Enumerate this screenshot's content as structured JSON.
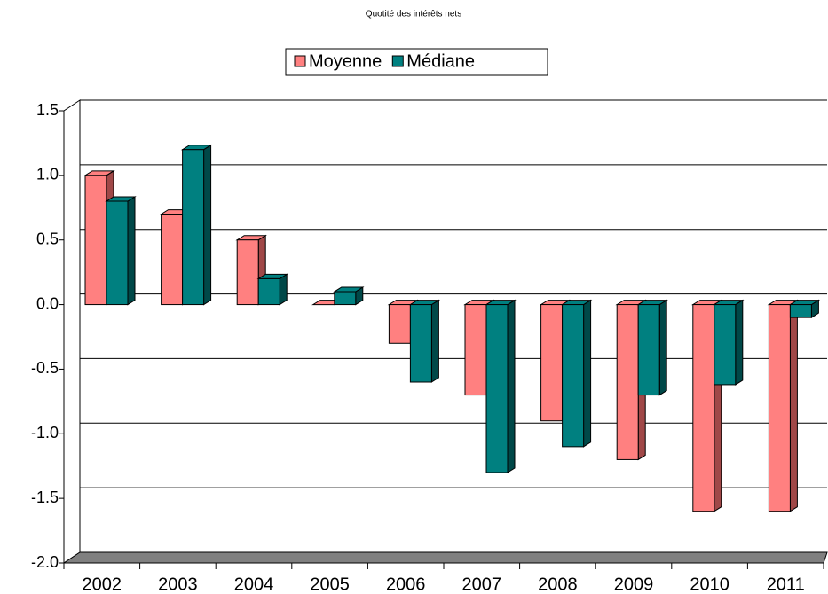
{
  "chart_data": {
    "type": "bar3d",
    "title": "Quotité des intérêts nets",
    "categories": [
      "2002",
      "2003",
      "2004",
      "2005",
      "2006",
      "2007",
      "2008",
      "2009",
      "2010",
      "2011"
    ],
    "series": [
      {
        "name": "Moyenne",
        "color": "#ff8080",
        "side_color": "#a04848",
        "values": [
          1.0,
          0.7,
          0.5,
          0.0,
          -0.3,
          -0.7,
          -0.9,
          -1.2,
          -1.6,
          -1.6
        ]
      },
      {
        "name": "Médiane",
        "color": "#008080",
        "side_color": "#004848",
        "values": [
          0.8,
          1.2,
          0.2,
          0.1,
          -0.6,
          -1.3,
          -1.1,
          -0.7,
          -0.62,
          -0.1
        ]
      }
    ],
    "ylim": [
      -2.0,
      1.5
    ],
    "yticks": [
      1.5,
      {
        "value": 1.0,
        "label": "1.0"
      },
      0.5,
      {
        "value": 0.0,
        "label": "0.0"
      },
      -0.5,
      {
        "value": -1.0,
        "label": "-1.0"
      },
      -1.5,
      {
        "value": -2.0,
        "label": "-2.0"
      }
    ],
    "negative_tick_color": "#ff0000",
    "grid": true,
    "legend": "top"
  }
}
